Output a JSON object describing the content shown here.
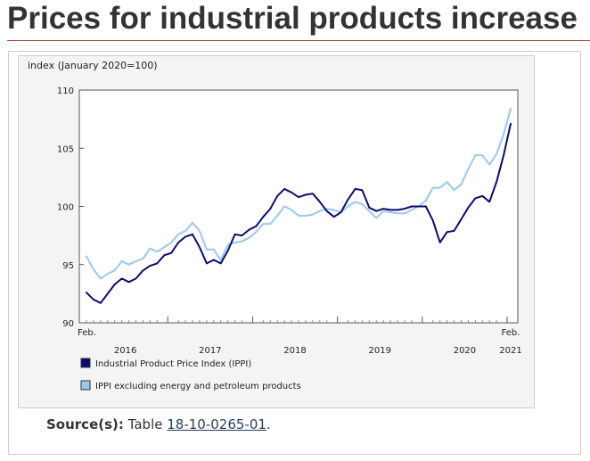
{
  "page": {
    "title": "Prices for industrial products increase"
  },
  "source": {
    "label": "Source(s):",
    "text_before": "Table",
    "link_text": "18-10-0265-01",
    "text_after": "."
  },
  "colors": {
    "ippi": "#0b0a6e",
    "ippi_excl": "#99c8f0",
    "title_rule": "#af3c43",
    "link": "#284162"
  },
  "chart_data": {
    "type": "line",
    "title": "",
    "ylabel": "index (January 2020=100)",
    "xlabel": "",
    "ylim": [
      90,
      110
    ],
    "yticks": [
      90,
      95,
      100,
      105,
      110
    ],
    "grid": false,
    "legend_position": "bottom-left",
    "x_start": "2016-02",
    "x_end": "2021-02",
    "x_tick_labels": [
      {
        "label": "Feb.",
        "month_index": 0,
        "row": 1
      },
      {
        "label": "2016",
        "month_index": 5.5,
        "row": 2
      },
      {
        "label": "2017",
        "month_index": 17.5,
        "row": 2
      },
      {
        "label": "2018",
        "month_index": 29.5,
        "row": 2
      },
      {
        "label": "2019",
        "month_index": 41.5,
        "row": 2
      },
      {
        "label": "2020",
        "month_index": 53.5,
        "row": 2
      },
      {
        "label": "Feb.",
        "month_index": 60,
        "row": 1
      },
      {
        "label": "2021",
        "month_index": 60,
        "row": 2
      }
    ],
    "year_boundaries": [
      11,
      23,
      35,
      47,
      59
    ],
    "series": [
      {
        "name": "Industrial Product Price Index (IPPI)",
        "color": "#0b0a6e",
        "values": [
          92.6,
          92.0,
          91.7,
          92.5,
          93.3,
          93.8,
          93.5,
          93.8,
          94.5,
          94.9,
          95.1,
          95.8,
          96.0,
          96.9,
          97.4,
          97.6,
          96.5,
          95.1,
          95.4,
          95.1,
          96.2,
          97.6,
          97.5,
          98.0,
          98.3,
          99.1,
          99.8,
          100.9,
          101.5,
          101.2,
          100.8,
          101.0,
          101.1,
          100.4,
          99.6,
          99.1,
          99.5,
          100.6,
          101.5,
          101.4,
          99.9,
          99.6,
          99.8,
          99.7,
          99.7,
          99.8,
          100.0,
          100.0,
          100.0,
          98.8,
          96.9,
          97.8,
          97.9,
          98.9,
          99.9,
          100.7,
          100.9,
          100.4,
          102.1,
          104.4,
          107.1
        ]
      },
      {
        "name": "IPPI excluding energy and petroleum products",
        "color": "#99c8f0",
        "values": [
          95.7,
          94.6,
          93.8,
          94.2,
          94.5,
          95.3,
          95.0,
          95.3,
          95.5,
          96.4,
          96.1,
          96.5,
          96.9,
          97.6,
          97.9,
          98.6,
          97.9,
          96.3,
          96.3,
          95.4,
          96.7,
          96.9,
          97.0,
          97.3,
          97.8,
          98.5,
          98.5,
          99.2,
          100.0,
          99.7,
          99.2,
          99.2,
          99.3,
          99.6,
          99.8,
          99.7,
          99.5,
          100.0,
          100.4,
          100.2,
          99.6,
          99.0,
          99.6,
          99.5,
          99.4,
          99.4,
          99.7,
          100.0,
          100.5,
          101.6,
          101.6,
          102.1,
          101.4,
          101.9,
          103.2,
          104.4,
          104.4,
          103.6,
          104.5,
          106.2,
          108.4
        ]
      }
    ]
  }
}
